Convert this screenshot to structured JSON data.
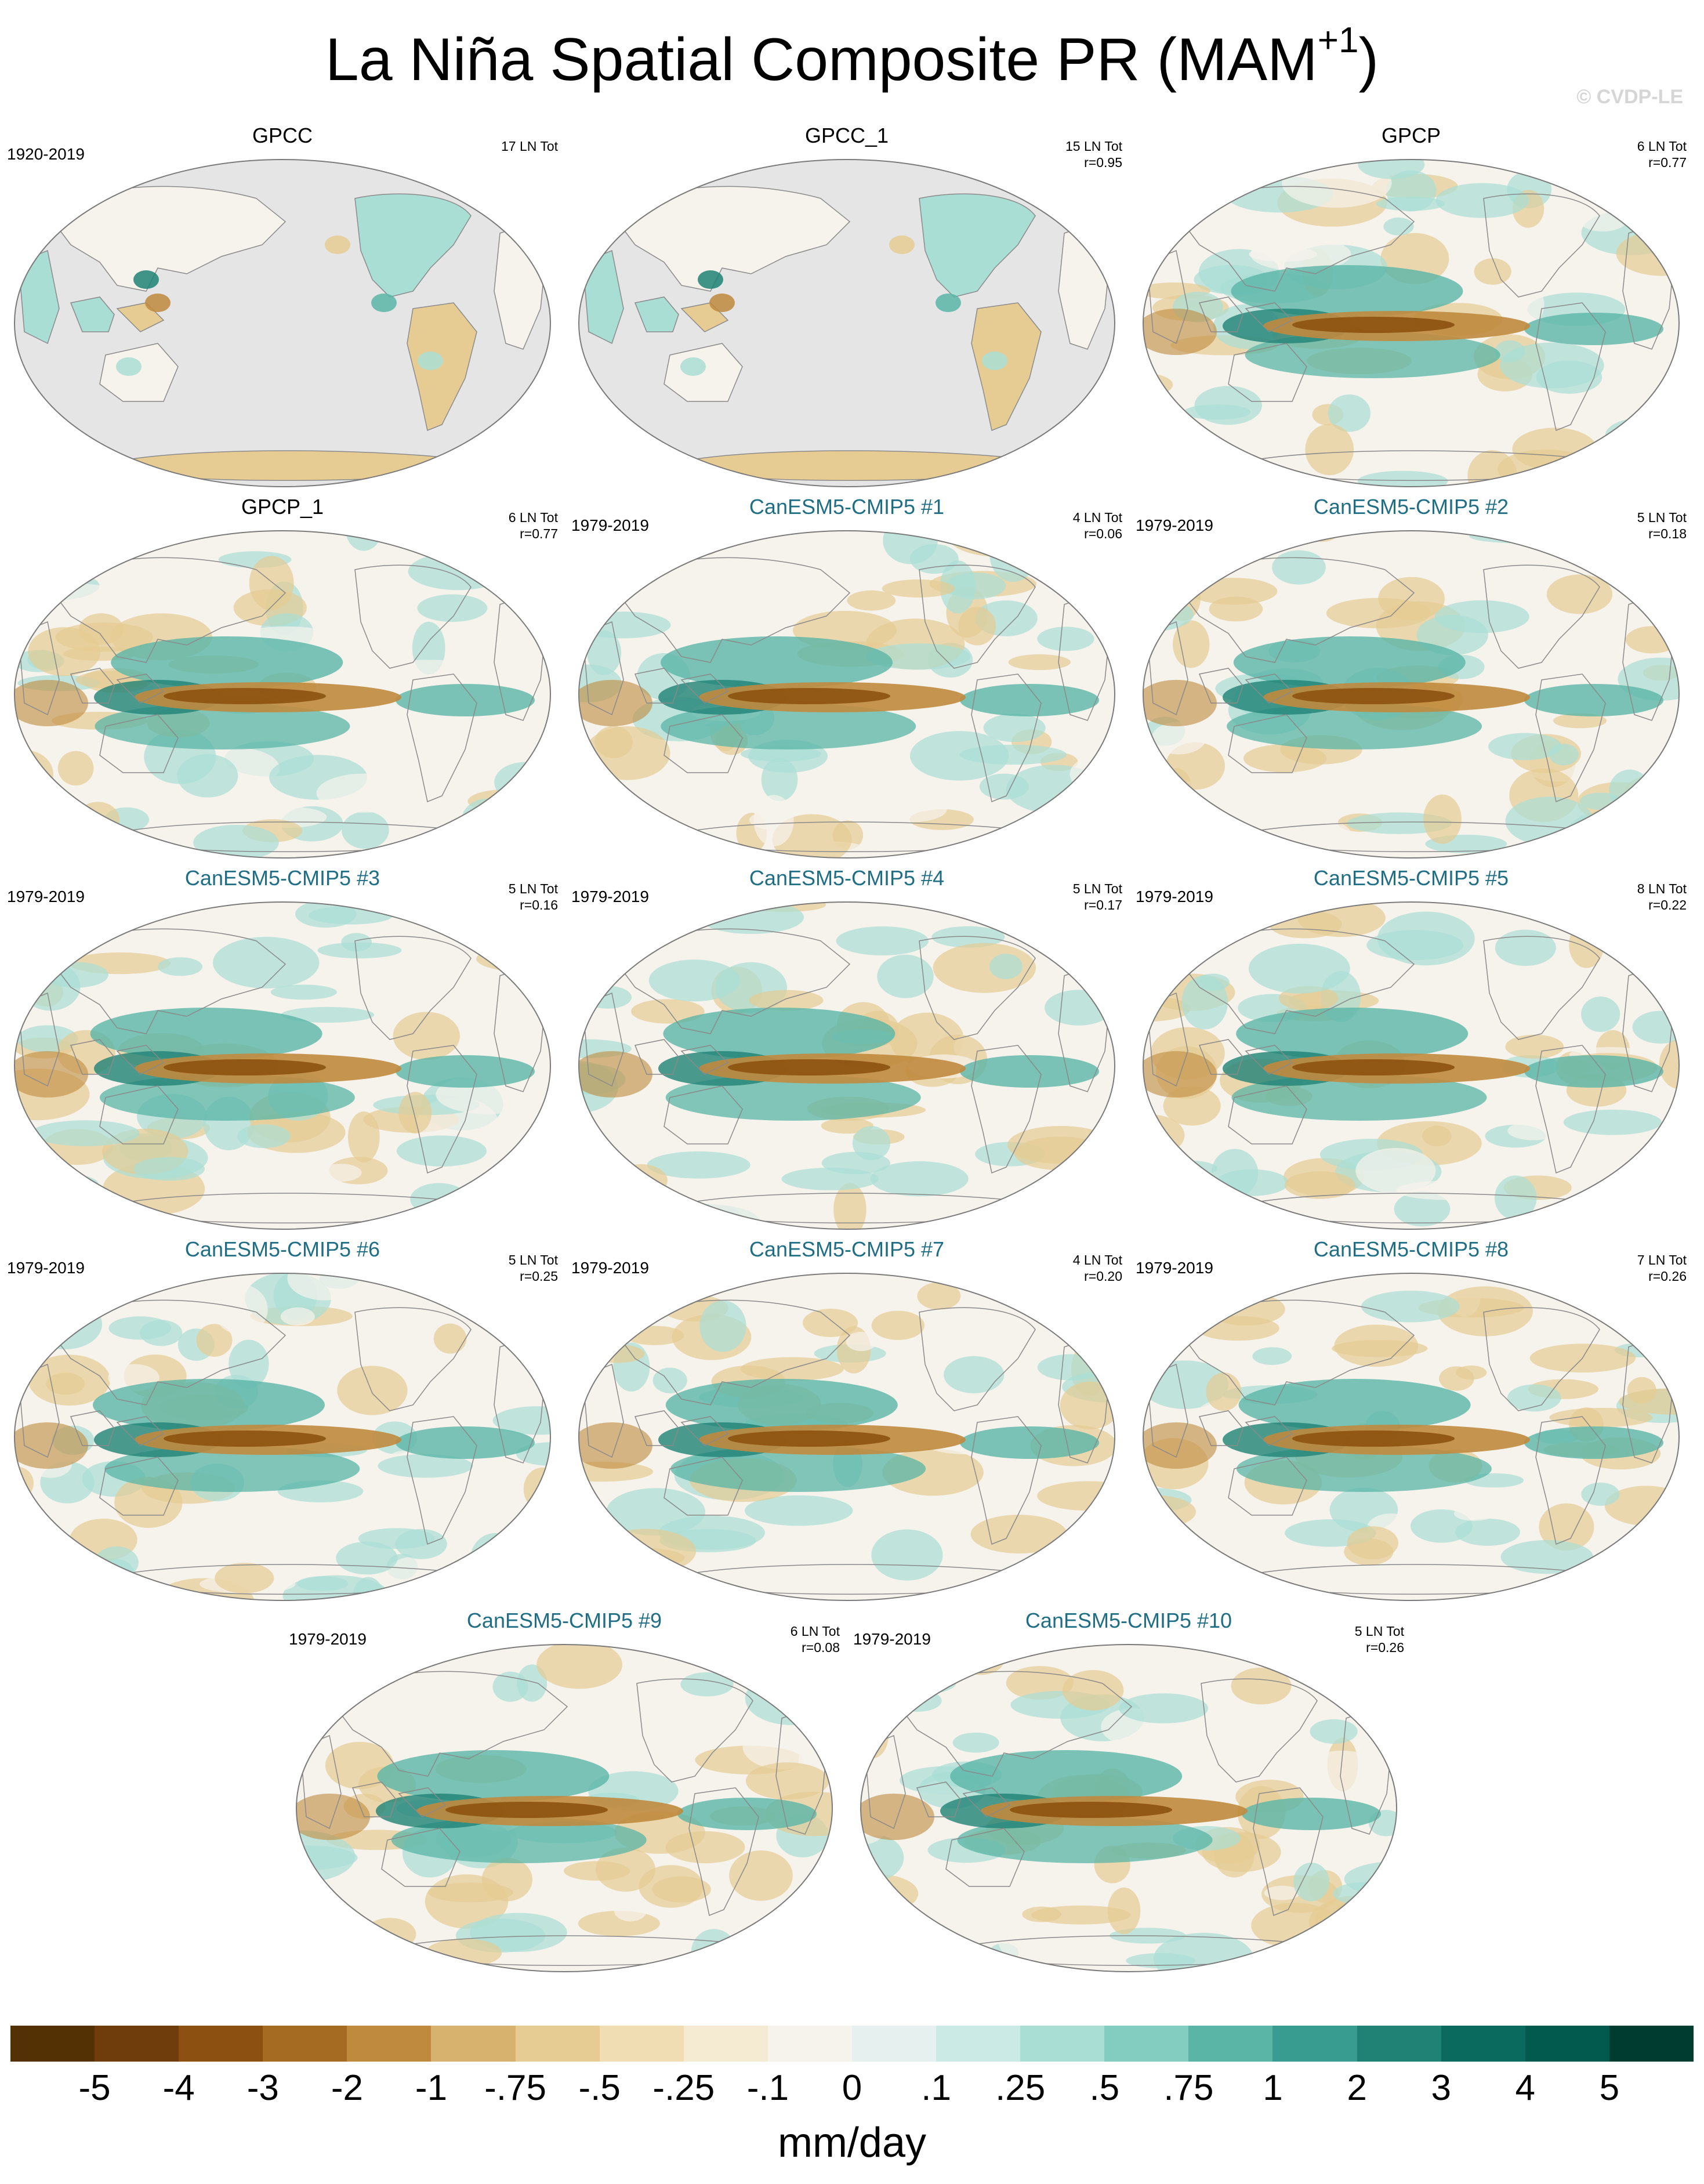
{
  "title_main": "La Niña Spatial Composite PR (MAM",
  "title_sup": "+1",
  "title_end": ")",
  "credit": "© CVDP-LE",
  "panels": [
    {
      "name": "GPCC",
      "kind": "obs",
      "period": "1920-2019",
      "count": "17 LN Tot",
      "corr": "",
      "land_only": true
    },
    {
      "name": "GPCC_1",
      "kind": "obs",
      "period": "",
      "count": "15 LN Tot",
      "corr": "r=0.95",
      "land_only": true
    },
    {
      "name": "GPCP",
      "kind": "obs",
      "period": "",
      "count": "6 LN Tot",
      "corr": "r=0.77",
      "land_only": false
    },
    {
      "name": "GPCP_1",
      "kind": "obs",
      "period": "",
      "count": "6 LN Tot",
      "corr": "r=0.77",
      "land_only": false
    },
    {
      "name": "CanESM5-CMIP5 #1",
      "kind": "model",
      "period": "1979-2019",
      "count": "4 LN Tot",
      "corr": "r=0.06",
      "land_only": false
    },
    {
      "name": "CanESM5-CMIP5 #2",
      "kind": "model",
      "period": "1979-2019",
      "count": "5 LN Tot",
      "corr": "r=0.18",
      "land_only": false
    },
    {
      "name": "CanESM5-CMIP5 #3",
      "kind": "model",
      "period": "1979-2019",
      "count": "5 LN Tot",
      "corr": "r=0.16",
      "land_only": false
    },
    {
      "name": "CanESM5-CMIP5 #4",
      "kind": "model",
      "period": "1979-2019",
      "count": "5 LN Tot",
      "corr": "r=0.17",
      "land_only": false
    },
    {
      "name": "CanESM5-CMIP5 #5",
      "kind": "model",
      "period": "1979-2019",
      "count": "8 LN Tot",
      "corr": "r=0.22",
      "land_only": false
    },
    {
      "name": "CanESM5-CMIP5 #6",
      "kind": "model",
      "period": "1979-2019",
      "count": "5 LN Tot",
      "corr": "r=0.25",
      "land_only": false
    },
    {
      "name": "CanESM5-CMIP5 #7",
      "kind": "model",
      "period": "1979-2019",
      "count": "4 LN Tot",
      "corr": "r=0.20",
      "land_only": false
    },
    {
      "name": "CanESM5-CMIP5 #8",
      "kind": "model",
      "period": "1979-2019",
      "count": "7 LN Tot",
      "corr": "r=0.26",
      "land_only": false
    },
    {
      "name": "CanESM5-CMIP5 #9",
      "kind": "model",
      "period": "1979-2019",
      "count": "6 LN Tot",
      "corr": "r=0.08",
      "land_only": false
    },
    {
      "name": "CanESM5-CMIP5 #10",
      "kind": "model",
      "period": "1979-2019",
      "count": "5 LN Tot",
      "corr": "r=0.26",
      "land_only": false
    }
  ],
  "colorbar": {
    "units": "mm/day",
    "tick_labels": [
      "-5",
      "-4",
      "-3",
      "-2",
      "-1",
      "-.75",
      "-.5",
      "-.25",
      "-.1",
      "0",
      ".1",
      ".25",
      ".5",
      ".75",
      "1",
      "2",
      "3",
      "4",
      "5"
    ],
    "colors": [
      "#543005",
      "#6e3d0b",
      "#8c5110",
      "#a66b23",
      "#c08a3e",
      "#d7b26f",
      "#e6cc93",
      "#f0ddb4",
      "#f5ead2",
      "#f6f2ec",
      "#e6f0ef",
      "#cceae5",
      "#a9ded5",
      "#83cdc0",
      "#5ab5a7",
      "#389d90",
      "#1f8275",
      "#0b6a5e",
      "#02594d",
      "#003c30"
    ]
  },
  "palette": {
    "dry_strong": "#8c5110",
    "dry": "#c08a3e",
    "dry_light": "#e6cc93",
    "neutral": "#f6f2ec",
    "wet_light": "#a9ded5",
    "wet": "#5ab5a7",
    "wet_strong": "#1f8275",
    "ocean_masked": "#e5e5e5",
    "coast": "#8a8a8a"
  }
}
